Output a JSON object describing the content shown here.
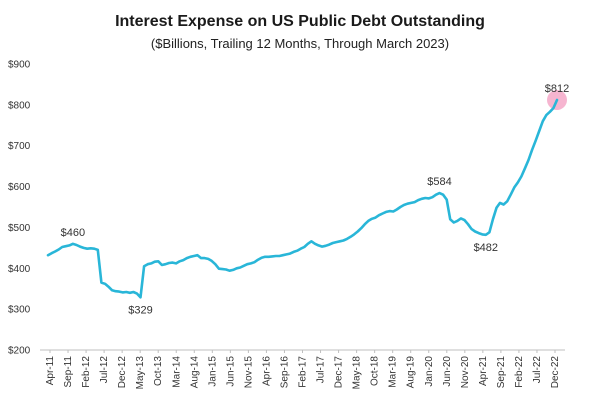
{
  "chart_data": {
    "type": "line",
    "title": "Interest Expense on US Public Debt Outstanding",
    "subtitle": "($Billions, Trailing 12 Months, Through March 2023)",
    "xlabel": "",
    "ylabel": "",
    "ylim": [
      200,
      900
    ],
    "yticks": [
      200,
      300,
      400,
      500,
      600,
      700,
      800,
      900
    ],
    "ytick_labels": [
      "$200",
      "$300",
      "$400",
      "$500",
      "$600",
      "$700",
      "$800",
      "$900"
    ],
    "xtick_labels": [
      "Apr-11",
      "Sep-11",
      "Feb-12",
      "Jul-12",
      "Dec-12",
      "May-13",
      "Oct-13",
      "Mar-14",
      "Aug-14",
      "Jan-15",
      "Jun-15",
      "Nov-15",
      "Apr-16",
      "Sep-16",
      "Feb-17",
      "Jul-17",
      "Dec-17",
      "May-18",
      "Oct-18",
      "Mar-19",
      "Aug-19",
      "Jan-20",
      "Jun-20",
      "Nov-20",
      "Apr-21",
      "Sep-21",
      "Feb-22",
      "Jul-22",
      "Dec-22"
    ],
    "grid": false,
    "series": [
      {
        "color": "#29b6d8",
        "x_index": [
          0,
          1,
          2,
          3,
          4,
          5,
          6,
          7,
          8,
          9,
          10,
          11,
          12,
          13,
          14,
          15,
          16,
          17,
          18,
          19,
          20,
          21,
          22,
          23,
          24,
          25,
          26,
          27,
          28,
          29,
          30,
          31,
          32,
          33,
          34,
          35,
          36,
          37,
          38,
          39,
          40,
          41,
          42,
          43,
          44,
          45,
          46,
          47,
          48,
          49,
          50,
          51,
          52,
          53,
          54,
          55,
          56,
          57,
          58,
          59,
          60,
          61,
          62,
          63,
          64,
          65,
          66,
          67,
          68,
          69,
          70,
          71,
          72,
          73,
          74,
          75,
          76,
          77,
          78,
          79,
          80,
          81,
          82,
          83,
          84,
          85,
          86,
          87,
          88,
          89,
          90,
          91,
          92,
          93,
          94,
          95,
          96,
          97,
          98,
          99,
          100,
          101,
          102,
          103,
          104,
          105,
          106,
          107,
          108,
          109,
          110,
          111,
          112,
          113,
          114,
          115,
          116,
          117,
          118,
          119,
          120,
          121,
          122,
          123,
          124,
          125,
          126,
          127,
          128,
          129,
          130,
          131,
          132,
          133,
          134,
          135,
          136,
          137,
          138,
          139,
          140,
          141,
          142,
          143
        ],
        "values": [
          432,
          437,
          441,
          446,
          452,
          454,
          456,
          460,
          457,
          453,
          450,
          448,
          449,
          448,
          445,
          365,
          362,
          355,
          346,
          344,
          343,
          341,
          342,
          340,
          342,
          338,
          329,
          405,
          410,
          412,
          416,
          417,
          408,
          410,
          413,
          414,
          412,
          417,
          420,
          425,
          428,
          430,
          432,
          425,
          425,
          423,
          418,
          410,
          399,
          398,
          397,
          394,
          396,
          400,
          402,
          406,
          410,
          412,
          415,
          421,
          426,
          428,
          428,
          429,
          430,
          430,
          432,
          434,
          436,
          440,
          443,
          448,
          452,
          460,
          466,
          460,
          456,
          453,
          455,
          458,
          462,
          464,
          466,
          468,
          472,
          477,
          483,
          490,
          498,
          508,
          516,
          521,
          524,
          530,
          534,
          538,
          540,
          539,
          544,
          550,
          555,
          558,
          560,
          562,
          567,
          570,
          572,
          571,
          574,
          580,
          584,
          580,
          568,
          520,
          512,
          516,
          522,
          518,
          508,
          496,
          490,
          486,
          483,
          482,
          488,
          520,
          548,
          560,
          556,
          564,
          580,
          598,
          610,
          625,
          645,
          665,
          690,
          712,
          736,
          760,
          775,
          783,
          792,
          812
        ]
      }
    ],
    "annotations": [
      {
        "text": "$460",
        "x_index": 7,
        "value": 460,
        "position": "above"
      },
      {
        "text": "$329",
        "x_index": 26,
        "value": 329,
        "position": "below"
      },
      {
        "text": "$584",
        "x_index": 110,
        "value": 584,
        "position": "above"
      },
      {
        "text": "$482",
        "x_index": 123,
        "value": 482,
        "position": "below"
      },
      {
        "text": "$812",
        "x_index": 143,
        "value": 812,
        "position": "above",
        "highlight_color": "#f4a8c8"
      }
    ]
  }
}
